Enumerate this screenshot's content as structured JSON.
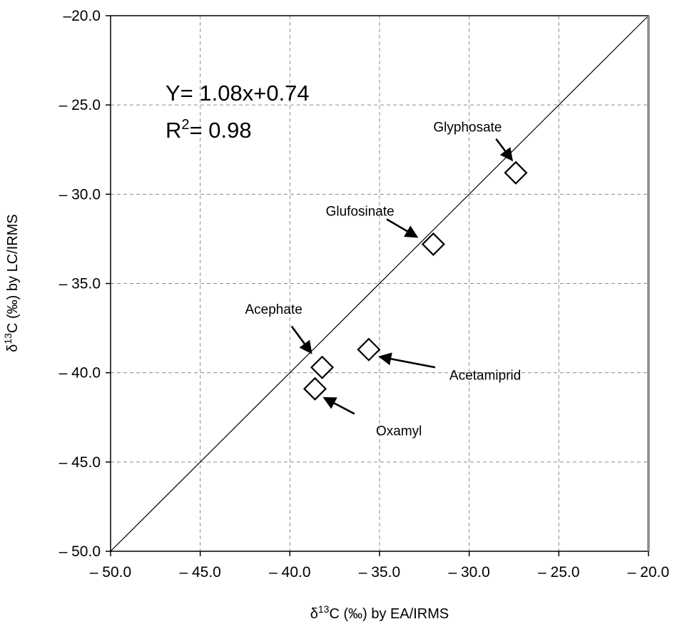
{
  "chart_data": {
    "type": "scatter",
    "title": "",
    "xlabel_prefix": "δ",
    "xlabel_sup": "13",
    "xlabel_rest": "C (‰) by EA/IRMS",
    "ylabel_prefix": "δ",
    "ylabel_sup": "13",
    "ylabel_rest": "C (‰) by LC/IRMS",
    "xlim": [
      -50.0,
      -20.0
    ],
    "ylim": [
      -50.0,
      -20.0
    ],
    "x_ticks": [
      -50,
      -45,
      -40,
      -35,
      -30,
      -25,
      -20
    ],
    "y_ticks": [
      -50,
      -45,
      -40,
      -35,
      -30,
      -25,
      -20
    ],
    "x_tick_labels": [
      "– 50.0",
      "– 45.0",
      "– 40.0",
      "– 35.0",
      "– 30.0",
      "– 25.0",
      "– 20.0"
    ],
    "y_tick_labels": [
      "– 50.0",
      "– 45.0",
      "– 40.0",
      "– 35.0",
      "– 30.0",
      "– 25.0",
      "–20.0"
    ],
    "grid": true,
    "reference_line": {
      "slope": 1,
      "intercept": 0
    },
    "marker": "diamond-open",
    "points": [
      {
        "name": "Glyphosate",
        "x": -27.4,
        "y": -28.8,
        "label_x": -32.0,
        "label_y": -26.5,
        "arrow_from": [
          -28.5,
          -26.9
        ],
        "arrow_to": [
          -27.6,
          -28.1
        ]
      },
      {
        "name": "Glufosinate",
        "x": -32.0,
        "y": -32.8,
        "label_x": -38.0,
        "label_y": -31.2,
        "arrow_from": [
          -34.6,
          -31.4
        ],
        "arrow_to": [
          -32.9,
          -32.4
        ]
      },
      {
        "name": "Acephate",
        "x": -38.2,
        "y": -39.7,
        "label_x": -42.5,
        "label_y": -36.7,
        "arrow_from": [
          -39.9,
          -37.4
        ],
        "arrow_to": [
          -38.8,
          -38.9
        ]
      },
      {
        "name": "Acetamiprid",
        "x": -35.6,
        "y": -38.7,
        "label_x": -31.1,
        "label_y": -40.4,
        "arrow_from": [
          -31.9,
          -39.7
        ],
        "arrow_to": [
          -35.0,
          -39.1
        ]
      },
      {
        "name": "Oxamyl",
        "x": -38.6,
        "y": -40.9,
        "label_x": -35.2,
        "label_y": -43.5,
        "arrow_from": [
          -36.4,
          -42.3
        ],
        "arrow_to": [
          -38.1,
          -41.4
        ]
      }
    ],
    "equation_line1": "Y= 1.08x+0.74",
    "equation_r_symbol": "R",
    "equation_r_sup": "2",
    "equation_r_rest": "= 0.98"
  }
}
